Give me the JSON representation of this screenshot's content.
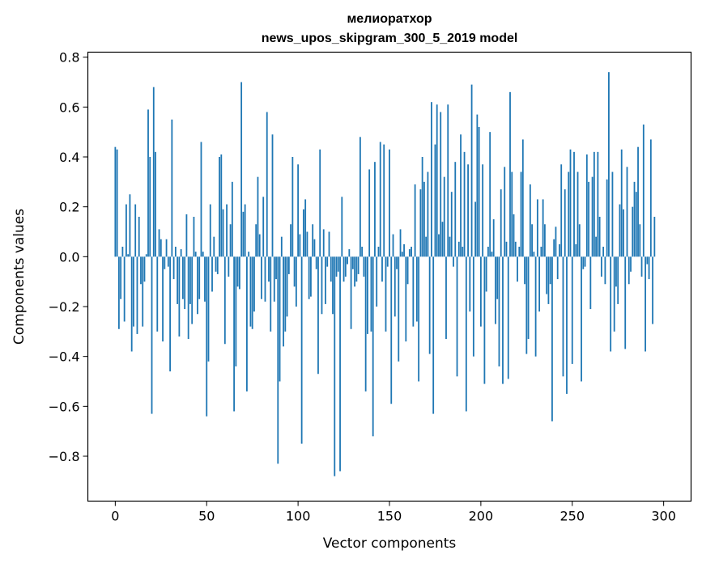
{
  "chart_data": {
    "type": "bar",
    "title": "мелиоратхор",
    "subtitle": "news_upos_skipgram_300_5_2019 model",
    "xlabel": "Vector components",
    "ylabel": "Components values",
    "xlim": [
      -15,
      315
    ],
    "ylim": [
      -0.98,
      0.82
    ],
    "xticks": [
      0,
      50,
      100,
      150,
      200,
      250,
      300
    ],
    "yticks": [
      -0.8,
      -0.6,
      -0.4,
      -0.2,
      0.0,
      0.2,
      0.4,
      0.6,
      0.8
    ],
    "xtick_labels": [
      "0",
      "50",
      "100",
      "150",
      "200",
      "250",
      "300"
    ],
    "ytick_labels": [
      "−0.8",
      "−0.6",
      "−0.4",
      "−0.2",
      "0.0",
      "0.2",
      "0.4",
      "0.6",
      "0.8"
    ],
    "bar_color": "#1f77b4",
    "grid": false,
    "values": [
      0.44,
      0.43,
      -0.29,
      -0.17,
      0.04,
      -0.26,
      0.21,
      0.01,
      0.25,
      -0.38,
      -0.28,
      0.21,
      -0.31,
      0.16,
      -0.11,
      -0.28,
      -0.1,
      0.01,
      0.59,
      0.4,
      -0.63,
      0.68,
      0.42,
      -0.3,
      0.11,
      0.07,
      -0.34,
      -0.05,
      0.07,
      -0.04,
      -0.46,
      0.55,
      -0.09,
      0.04,
      -0.19,
      -0.32,
      0.03,
      -0.17,
      -0.21,
      0.17,
      -0.33,
      -0.19,
      -0.27,
      0.16,
      0.02,
      -0.23,
      -0.17,
      0.46,
      0.02,
      -0.18,
      -0.64,
      -0.42,
      0.21,
      -0.14,
      0.08,
      -0.06,
      -0.07,
      0.4,
      0.41,
      0.19,
      -0.35,
      0.21,
      -0.08,
      0.13,
      0.3,
      -0.62,
      -0.44,
      -0.12,
      -0.13,
      0.7,
      0.18,
      0.21,
      -0.54,
      0.02,
      -0.28,
      -0.29,
      -0.22,
      0.13,
      0.32,
      0.09,
      -0.17,
      0.24,
      -0.18,
      0.58,
      -0.1,
      -0.3,
      0.49,
      -0.18,
      -0.09,
      -0.83,
      -0.5,
      0.08,
      -0.36,
      -0.3,
      -0.24,
      -0.07,
      0.13,
      0.4,
      -0.12,
      -0.2,
      0.37,
      0.09,
      -0.75,
      0.19,
      0.23,
      0.1,
      -0.17,
      -0.16,
      0.13,
      0.07,
      -0.05,
      -0.47,
      0.43,
      -0.23,
      0.11,
      -0.19,
      -0.04,
      0.1,
      -0.1,
      -0.23,
      -0.88,
      -0.08,
      -0.06,
      -0.86,
      0.24,
      -0.1,
      -0.08,
      -0.03,
      0.03,
      -0.29,
      -0.05,
      -0.12,
      -0.1,
      -0.07,
      0.48,
      0.04,
      -0.08,
      -0.54,
      -0.31,
      0.35,
      -0.3,
      -0.72,
      0.38,
      -0.2,
      0.04,
      0.46,
      -0.1,
      0.45,
      -0.3,
      -0.04,
      0.43,
      -0.59,
      0.09,
      -0.24,
      -0.05,
      -0.42,
      0.11,
      0.02,
      0.05,
      -0.34,
      -0.11,
      0.03,
      0.04,
      -0.28,
      0.29,
      -0.26,
      -0.5,
      0.27,
      0.4,
      0.3,
      0.08,
      0.34,
      -0.39,
      0.62,
      -0.63,
      0.45,
      0.61,
      0.09,
      0.58,
      0.14,
      0.32,
      -0.33,
      0.61,
      0.08,
      0.26,
      -0.04,
      0.38,
      -0.48,
      0.06,
      0.49,
      0.04,
      0.42,
      -0.62,
      0.37,
      -0.22,
      0.69,
      -0.4,
      0.22,
      0.57,
      0.52,
      -0.28,
      0.37,
      -0.51,
      -0.14,
      0.04,
      0.5,
      0.02,
      0.15,
      -0.27,
      -0.17,
      -0.44,
      0.27,
      -0.51,
      0.36,
      0.06,
      -0.49,
      0.66,
      0.34,
      0.17,
      0.06,
      -0.1,
      0.04,
      0.34,
      0.47,
      -0.11,
      -0.39,
      -0.33,
      0.29,
      0.13,
      0.02,
      -0.4,
      0.23,
      -0.22,
      0.04,
      0.23,
      0.13,
      -0.15,
      -0.19,
      -0.11,
      -0.66,
      0.07,
      0.12,
      -0.09,
      0.05,
      0.37,
      -0.48,
      0.27,
      -0.55,
      0.34,
      0.43,
      -0.43,
      0.42,
      0.05,
      0.34,
      0.13,
      -0.5,
      -0.05,
      -0.04,
      0.41,
      0.3,
      -0.21,
      0.32,
      0.42,
      0.08,
      0.42,
      0.16,
      -0.08,
      0.04,
      -0.11,
      0.31,
      0.74,
      -0.38,
      0.34,
      -0.3,
      -0.12,
      -0.19,
      0.21,
      0.43,
      0.19,
      -0.37,
      0.36,
      -0.11,
      -0.06,
      0.2,
      0.3,
      0.26,
      0.44,
      0.13,
      -0.08,
      0.53,
      -0.38,
      -0.03,
      -0.09,
      0.47,
      -0.27,
      0.16
    ]
  }
}
